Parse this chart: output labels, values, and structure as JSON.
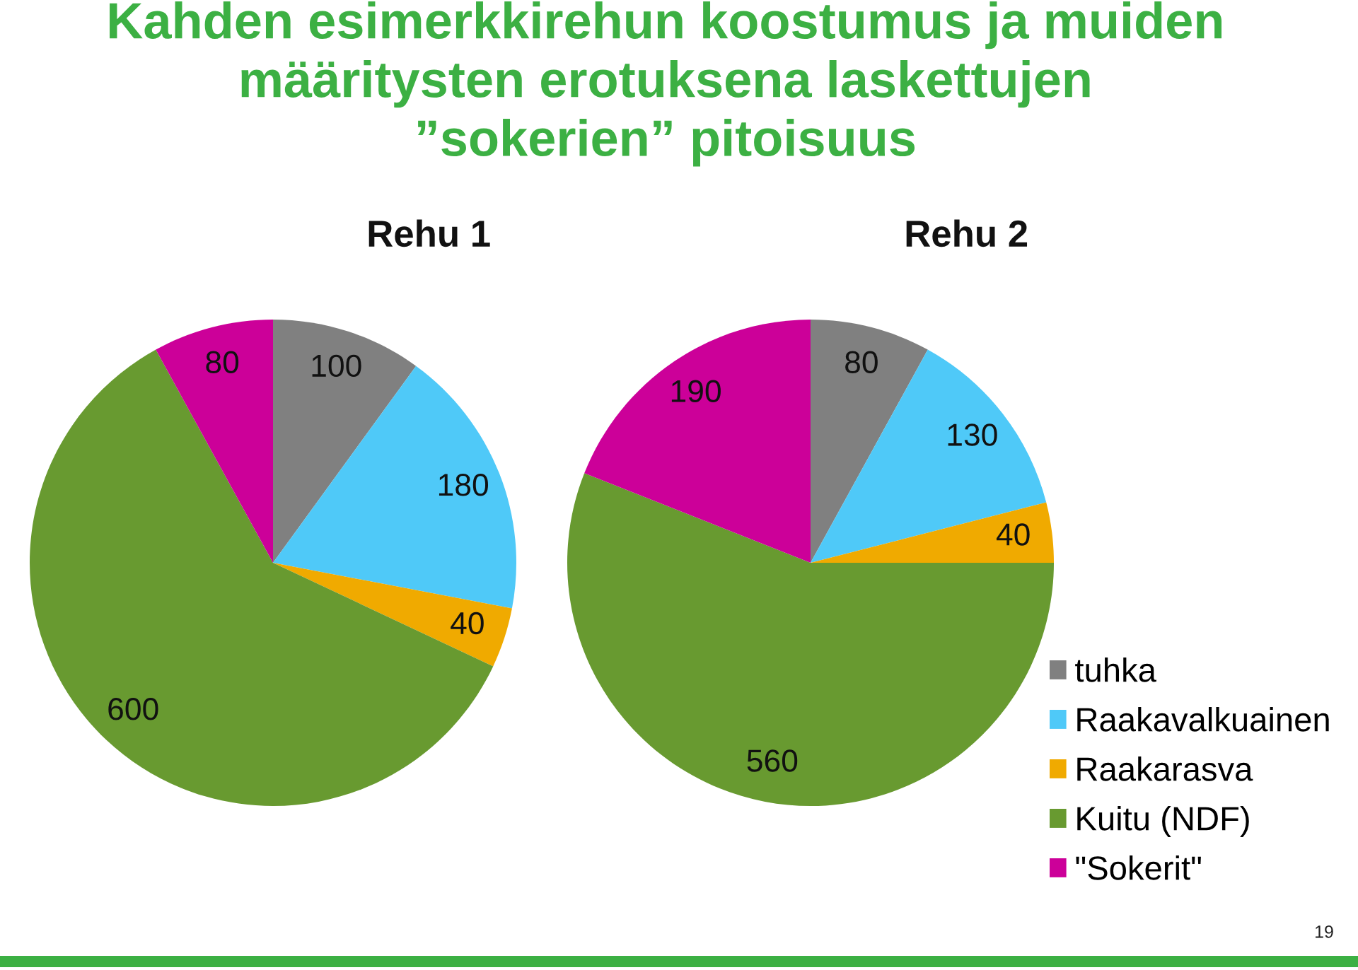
{
  "chart_data": [
    {
      "type": "pie",
      "title": "Rehu 1",
      "categories": [
        "tuhka",
        "Raakavalkuainen",
        "Raakarasva",
        "Kuitu (NDF)",
        "\"Sokerit\""
      ],
      "values": [
        100,
        180,
        40,
        600,
        80
      ],
      "colors": [
        "#808080",
        "#4fc9f8",
        "#f0aa00",
        "#689a30",
        "#cc0099"
      ],
      "data_labels": true,
      "legend": "bottom right",
      "annotations": [
        "Kahden esimerkkirehun koostumus ja muiden\nmääritysten erotuksena laskettujen\n”sokerien” pitoisuus"
      ]
    },
    {
      "type": "pie",
      "title": "Rehu 2",
      "categories": [
        null,
        null,
        null,
        null,
        null
      ],
      "values": [
        80,
        130,
        40,
        560,
        190
      ],
      "colors": [
        "#808080",
        "#4fc9f8",
        "#f0aa00",
        "#689a30",
        "#cc0099"
      ],
      "data_labels": true,
      "annotations": [
        "19"
      ]
    }
  ]
}
